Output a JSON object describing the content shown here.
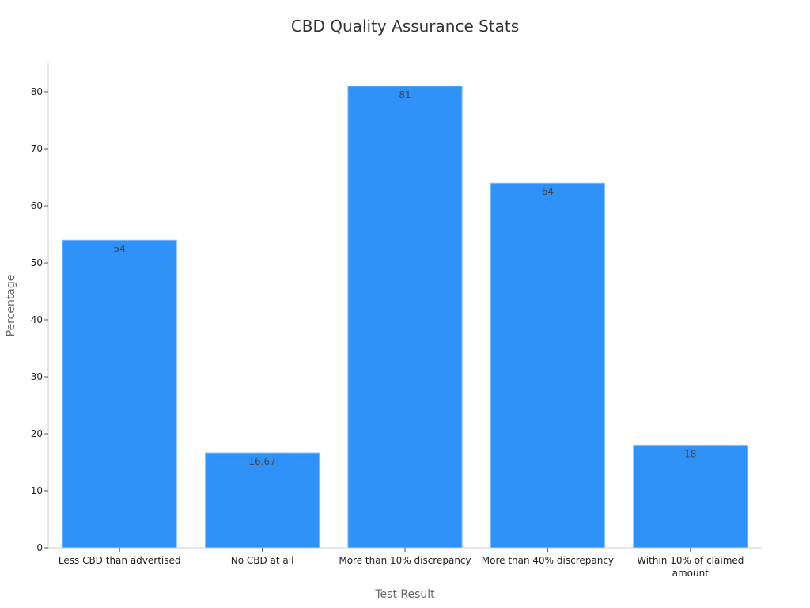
{
  "chart_data": {
    "type": "bar",
    "title": "CBD Quality Assurance Stats",
    "xlabel": "Test Result",
    "ylabel": "Percentage",
    "categories": [
      "Less CBD than advertised",
      "No CBD at all",
      "More than 10% discrepancy",
      "More than 40% discrepancy",
      "Within 10% of claimed amount"
    ],
    "category_lines": [
      [
        "Less CBD than advertised"
      ],
      [
        "No CBD at all"
      ],
      [
        "More than 10% discrepancy"
      ],
      [
        "More than 40% discrepancy"
      ],
      [
        "Within 10% of claimed",
        "amount"
      ]
    ],
    "values": [
      54,
      16.67,
      81,
      64,
      18
    ],
    "value_labels": [
      "54",
      "16.67",
      "81",
      "64",
      "18"
    ],
    "yticks": [
      0,
      10,
      20,
      30,
      40,
      50,
      60,
      70,
      80
    ],
    "ylim": [
      0,
      85
    ],
    "grid": false,
    "legend": "none",
    "colors": {
      "bar": "#2e92f8",
      "bar_edge": "#8cc4ff"
    }
  }
}
